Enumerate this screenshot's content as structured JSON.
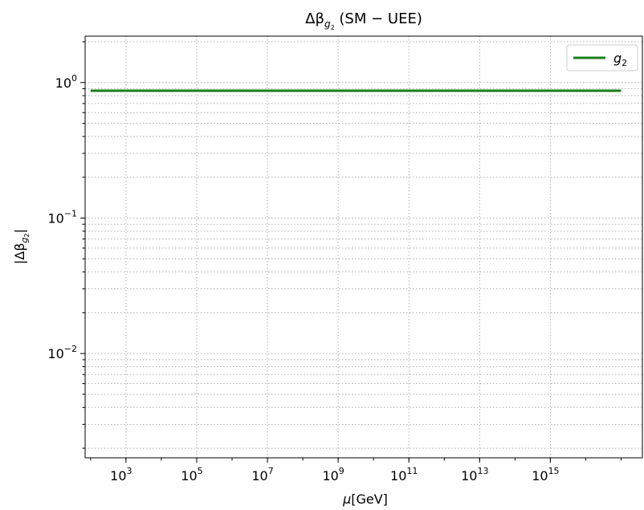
{
  "chart_data": {
    "type": "line",
    "title": {
      "prefix": "Δβ",
      "sub": "g",
      "subsub": "2",
      "suffix": "(SM − UEE)"
    },
    "xlabel": {
      "symbol": "μ",
      "unit": "[GeV]"
    },
    "ylabel": {
      "text": "|Δβ",
      "sub": "g",
      "subsub": "2",
      "close": "|"
    },
    "x_scale": "log",
    "y_scale": "log",
    "xlim": [
      70,
      400000000000000000
    ],
    "ylim": [
      0.0017,
      2.2
    ],
    "grid": true,
    "legend_position": "top-right",
    "x_ticks": [
      {
        "value": 1000,
        "base": "10",
        "exp": "3"
      },
      {
        "value": 100000,
        "base": "10",
        "exp": "5"
      },
      {
        "value": 10000000,
        "base": "10",
        "exp": "7"
      },
      {
        "value": 1000000000,
        "base": "10",
        "exp": "9"
      },
      {
        "value": 100000000000,
        "base": "10",
        "exp": "11"
      },
      {
        "value": 10000000000000,
        "base": "10",
        "exp": "13"
      },
      {
        "value": 1000000000000000,
        "base": "10",
        "exp": "15"
      }
    ],
    "y_ticks": [
      {
        "value": 1,
        "base": "10",
        "exp": "0"
      },
      {
        "value": 0.1,
        "base": "10",
        "exp": "−1"
      },
      {
        "value": 0.01,
        "base": "10",
        "exp": "−2"
      }
    ],
    "series": [
      {
        "name": "g",
        "name_sub": "2",
        "color": "#1a7f1a",
        "x": [
          100,
          1000,
          10000,
          100000,
          1000000,
          10000000,
          100000000,
          1000000000,
          10000000000,
          100000000000,
          1000000000000,
          10000000000000,
          100000000000000,
          1000000000000000,
          10000000000000000,
          100000000000000000
        ],
        "y": [
          0.87,
          0.87,
          0.87,
          0.87,
          0.87,
          0.87,
          0.87,
          0.87,
          0.87,
          0.87,
          0.87,
          0.87,
          0.87,
          0.87,
          0.87,
          0.87
        ]
      }
    ]
  }
}
